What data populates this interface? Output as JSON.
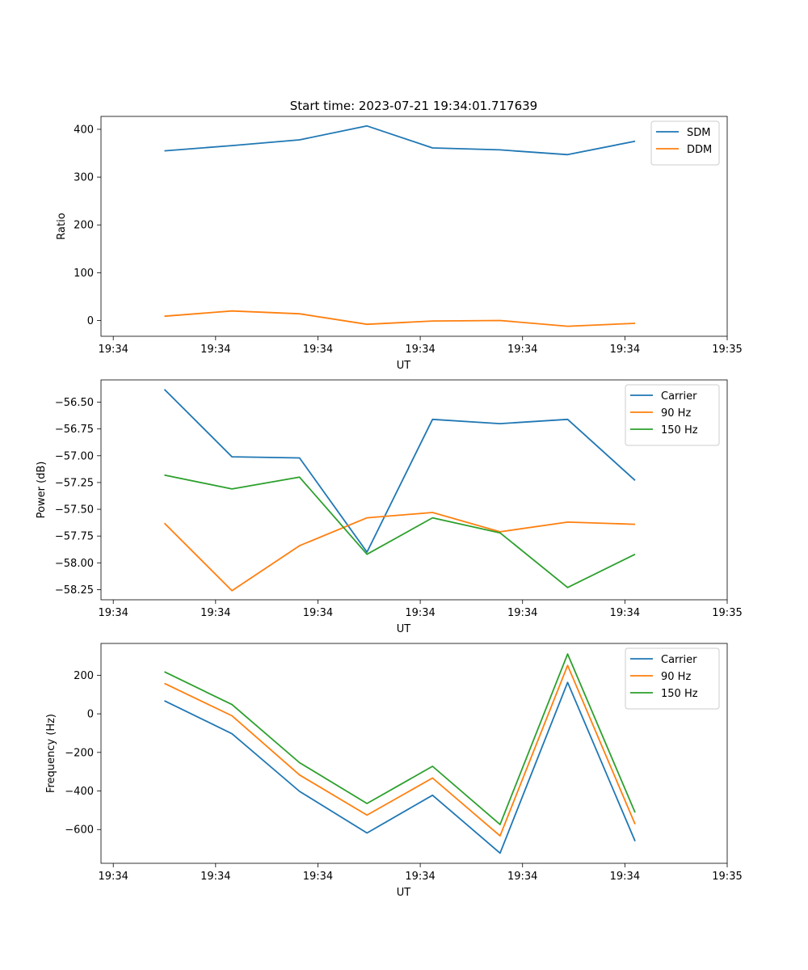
{
  "title": "Start time: 2023-07-21 19:34:01.717639",
  "colors": {
    "blue": "#1f77b4",
    "orange": "#ff7f0e",
    "green": "#2ca02c"
  },
  "chart_data": [
    {
      "type": "line",
      "title": "Start time: 2023-07-21 19:34:01.717639",
      "xlabel": "UT",
      "ylabel": "Ratio",
      "x_ticks": [
        "19:34",
        "19:34",
        "19:34",
        "19:34",
        "19:34",
        "19:34",
        "19:35"
      ],
      "x_tick_positions": [
        0,
        5,
        10,
        15,
        20,
        25,
        30
      ],
      "xlim": [
        -0.6,
        30.0
      ],
      "x": [
        2.5,
        5.8,
        9.1,
        12.4,
        15.6,
        18.9,
        22.2,
        25.5
      ],
      "ylim": [
        -33,
        427
      ],
      "y_ticks": [
        0,
        100,
        200,
        300,
        400
      ],
      "y_tick_labels": [
        "0",
        "100",
        "200",
        "300",
        "400"
      ],
      "legend": "top-right",
      "series": [
        {
          "name": "SDM",
          "color": "#1f77b4",
          "values": [
            355,
            366,
            378,
            407,
            361,
            357,
            347,
            375
          ]
        },
        {
          "name": "DDM",
          "color": "#ff7f0e",
          "values": [
            9,
            20,
            14,
            -8,
            -1,
            0,
            -12,
            -6
          ]
        }
      ]
    },
    {
      "type": "line",
      "xlabel": "UT",
      "ylabel": "Power (dB)",
      "x_ticks": [
        "19:34",
        "19:34",
        "19:34",
        "19:34",
        "19:34",
        "19:34",
        "19:35"
      ],
      "x_tick_positions": [
        0,
        5,
        10,
        15,
        20,
        25,
        30
      ],
      "xlim": [
        -0.6,
        30.0
      ],
      "x": [
        2.5,
        5.8,
        9.1,
        12.4,
        15.6,
        18.9,
        22.2,
        25.5
      ],
      "ylim": [
        -58.345,
        -56.292
      ],
      "y_ticks": [
        -58.25,
        -58.0,
        -57.75,
        -57.5,
        -57.25,
        -57.0,
        -56.75,
        -56.5
      ],
      "y_tick_labels": [
        "−58.25",
        "−58.00",
        "−57.75",
        "−57.50",
        "−57.25",
        "−57.00",
        "−56.75",
        "−56.50"
      ],
      "legend": "top-right",
      "series": [
        {
          "name": "Carrier",
          "color": "#1f77b4",
          "values": [
            -56.38,
            -57.01,
            -57.02,
            -57.9,
            -56.66,
            -56.7,
            -56.66,
            -57.23
          ]
        },
        {
          "name": "90 Hz",
          "color": "#ff7f0e",
          "values": [
            -57.63,
            -58.26,
            -57.84,
            -57.58,
            -57.53,
            -57.71,
            -57.62,
            -57.64
          ]
        },
        {
          "name": "150 Hz",
          "color": "#2ca02c",
          "values": [
            -57.18,
            -57.31,
            -57.2,
            -57.92,
            -57.58,
            -57.72,
            -58.23,
            -57.92
          ]
        }
      ]
    },
    {
      "type": "line",
      "xlabel": "UT",
      "ylabel": "Frequency (Hz)",
      "x_ticks": [
        "19:34",
        "19:34",
        "19:34",
        "19:34",
        "19:34",
        "19:34",
        "19:35"
      ],
      "x_tick_positions": [
        0,
        5,
        10,
        15,
        20,
        25,
        30
      ],
      "xlim": [
        -0.6,
        30.0
      ],
      "x": [
        2.5,
        5.8,
        9.1,
        12.4,
        15.6,
        18.9,
        22.2,
        25.5
      ],
      "ylim": [
        -775,
        365
      ],
      "y_ticks": [
        -600,
        -400,
        -200,
        0,
        200
      ],
      "y_tick_labels": [
        "−600",
        "−400",
        "−200",
        "0",
        "200"
      ],
      "legend": "top-right",
      "series": [
        {
          "name": "Carrier",
          "color": "#1f77b4",
          "values": [
            68,
            -103,
            -402,
            -618,
            -422,
            -722,
            163,
            -660
          ]
        },
        {
          "name": "90 Hz",
          "color": "#ff7f0e",
          "values": [
            158,
            -10,
            -317,
            -525,
            -333,
            -633,
            251,
            -572
          ]
        },
        {
          "name": "150 Hz",
          "color": "#2ca02c",
          "values": [
            218,
            48,
            -253,
            -465,
            -272,
            -574,
            310,
            -512
          ]
        }
      ]
    }
  ]
}
